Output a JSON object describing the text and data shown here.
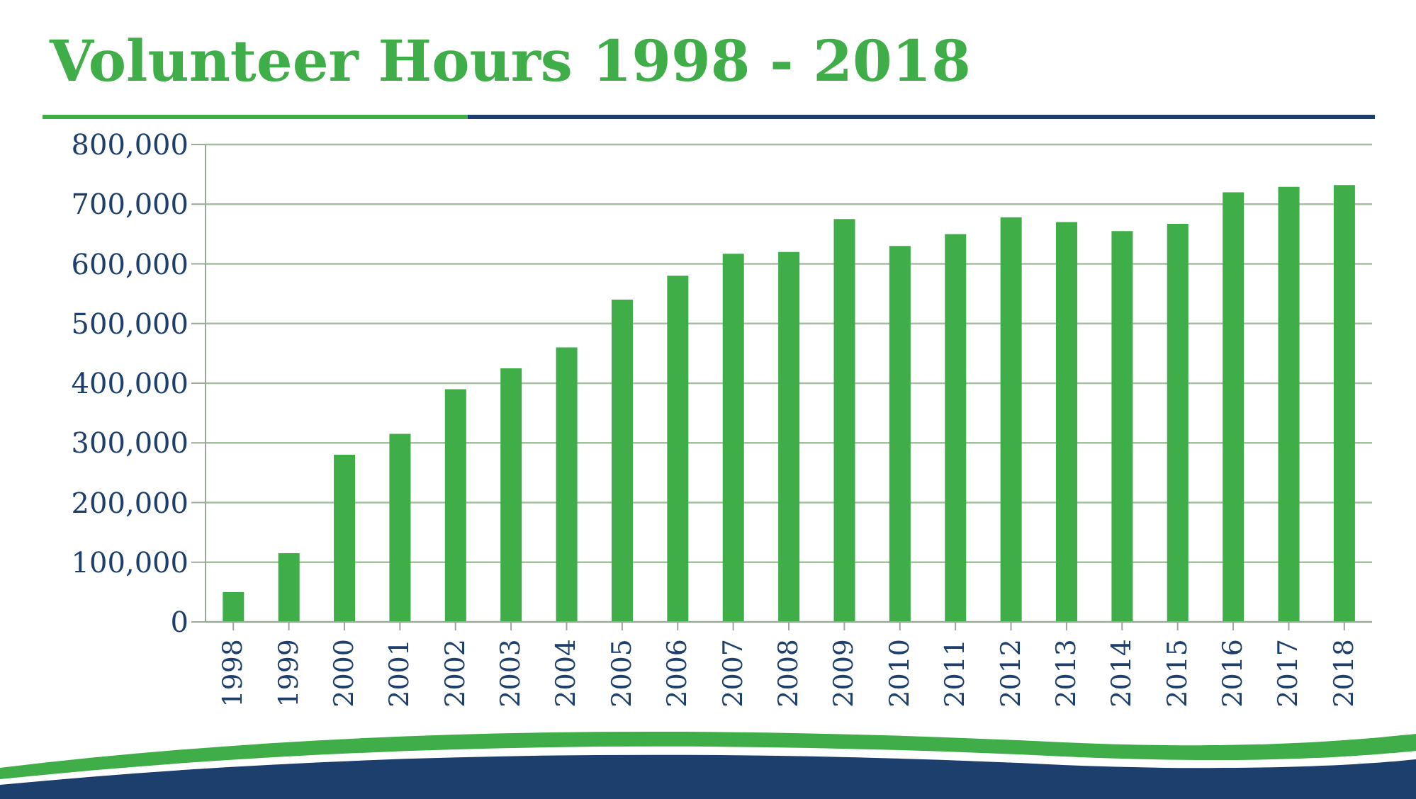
{
  "chart_data": {
    "type": "bar",
    "title": "Volunteer Hours 1998 - 2018",
    "categories": [
      "1998",
      "1999",
      "2000",
      "2001",
      "2002",
      "2003",
      "2004",
      "2005",
      "2006",
      "2007",
      "2008",
      "2009",
      "2010",
      "2011",
      "2012",
      "2013",
      "2014",
      "2015",
      "2016",
      "2017",
      "2018"
    ],
    "values": [
      50000,
      115000,
      280000,
      315000,
      390000,
      425000,
      460000,
      540000,
      580000,
      617000,
      620000,
      675000,
      630000,
      650000,
      678000,
      670000,
      655000,
      667000,
      720000,
      729000,
      732000
    ],
    "color": "#3fae49",
    "ylim": [
      0,
      800000
    ],
    "yticks": [
      0,
      {
        "value": 100000,
        "label": "100,000"
      },
      {
        "value": 200000,
        "label": "200,000"
      },
      {
        "value": 300000,
        "label": "300,000"
      },
      {
        "value": 400000,
        "label": "400,000"
      },
      {
        "value": 500000,
        "label": "500,000"
      },
      {
        "value": 600000,
        "label": "600,000"
      },
      {
        "value": 700000,
        "label": "700,000"
      },
      {
        "value": 800000,
        "label": "800,000"
      }
    ],
    "grid": "y"
  }
}
